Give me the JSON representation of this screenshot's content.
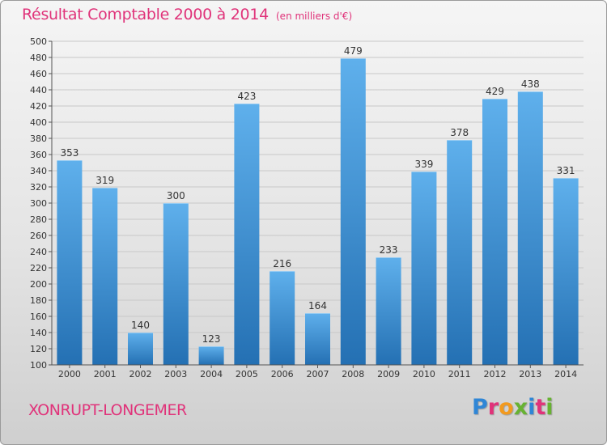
{
  "header": {
    "title": "Résultat Comptable 2000 à 2014",
    "unit": "(en milliers d'€)"
  },
  "footer": {
    "commune": "XONRUPT-LONGEMER",
    "brand": [
      "P",
      "r",
      "o",
      "x",
      "i",
      "t",
      "i"
    ],
    "brand_colors": [
      "#2f86d6",
      "#e0337a",
      "#f29a1f",
      "#67b232",
      "#2f86d6",
      "#e0337a",
      "#67b232"
    ]
  },
  "chart_data": {
    "type": "bar",
    "categories": [
      "2000",
      "2001",
      "2002",
      "2003",
      "2004",
      "2005",
      "2006",
      "2007",
      "2008",
      "2009",
      "2010",
      "2011",
      "2012",
      "2013",
      "2014"
    ],
    "values": [
      353,
      319,
      140,
      300,
      123,
      423,
      216,
      164,
      479,
      233,
      339,
      378,
      429,
      438,
      331
    ],
    "title": "Résultat Comptable 2000 à 2014",
    "ylim": [
      100,
      500
    ],
    "yticks": [
      100,
      120,
      140,
      160,
      180,
      200,
      220,
      240,
      260,
      280,
      300,
      320,
      340,
      360,
      380,
      400,
      420,
      440,
      460,
      480,
      500
    ],
    "grid": true,
    "bar_color": "#3a93d9"
  }
}
